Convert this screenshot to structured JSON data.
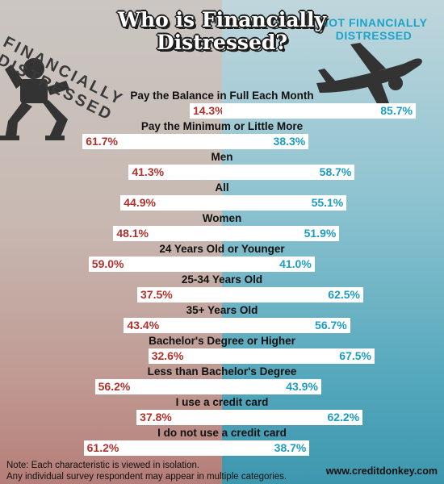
{
  "title_line1": "Who is Financially",
  "title_line2": "Distressed?",
  "left_heading": "FINANCIALLY DISTRESSED",
  "right_heading_line1": "NOT FINANCIALLY",
  "right_heading_line2": "DISTRESSED",
  "colors": {
    "distressed": "#b0322b",
    "not_distressed": "#1b9cc1",
    "bar": "#ffffff"
  },
  "icons": [
    "weightlifter-icon",
    "airplane-icon"
  ],
  "chart_data": {
    "type": "bar",
    "orientation": "diverging horizontal",
    "categories": [
      "Pay the Balance in Full Each Month",
      "Pay the Minimum or Little More",
      "Men",
      "All",
      "Women",
      "24 Years Old or Younger",
      "25-34 Years Old",
      "35+ Years Old",
      "Bachelor's Degree or Higher",
      "Less than Bachelor's Degree",
      "I use a credit card",
      "I do not use a credit card"
    ],
    "series": [
      {
        "name": "FINANCIALLY DISTRESSED",
        "values": [
          14.3,
          61.7,
          41.3,
          44.9,
          48.1,
          59.0,
          37.5,
          43.4,
          32.6,
          56.2,
          37.8,
          61.2
        ],
        "labels": [
          "14.3%",
          "61.7%",
          "41.3%",
          "44.9%",
          "48.1%",
          "59.0%",
          "37.5%",
          "43.4%",
          "32.6%",
          "56.2%",
          "37.8%",
          "61.2%"
        ]
      },
      {
        "name": "NOT FINANCIALLY DISTRESSED",
        "values": [
          85.7,
          38.3,
          58.7,
          55.1,
          51.9,
          41.0,
          62.5,
          56.7,
          67.5,
          43.9,
          62.2,
          38.7
        ],
        "labels": [
          "85.7%",
          "38.3%",
          "58.7%",
          "55.1%",
          "51.9%",
          "41.0%",
          "62.5%",
          "56.7%",
          "67.5%",
          "43.9%",
          "62.2%",
          "38.7%"
        ]
      }
    ],
    "unit": "%"
  },
  "note_line1": "Note: Each characteristic is viewed in isolation.",
  "note_line2": "Any individual survey respondent may appear in multiple categories.",
  "site": "www.creditdonkey.com"
}
